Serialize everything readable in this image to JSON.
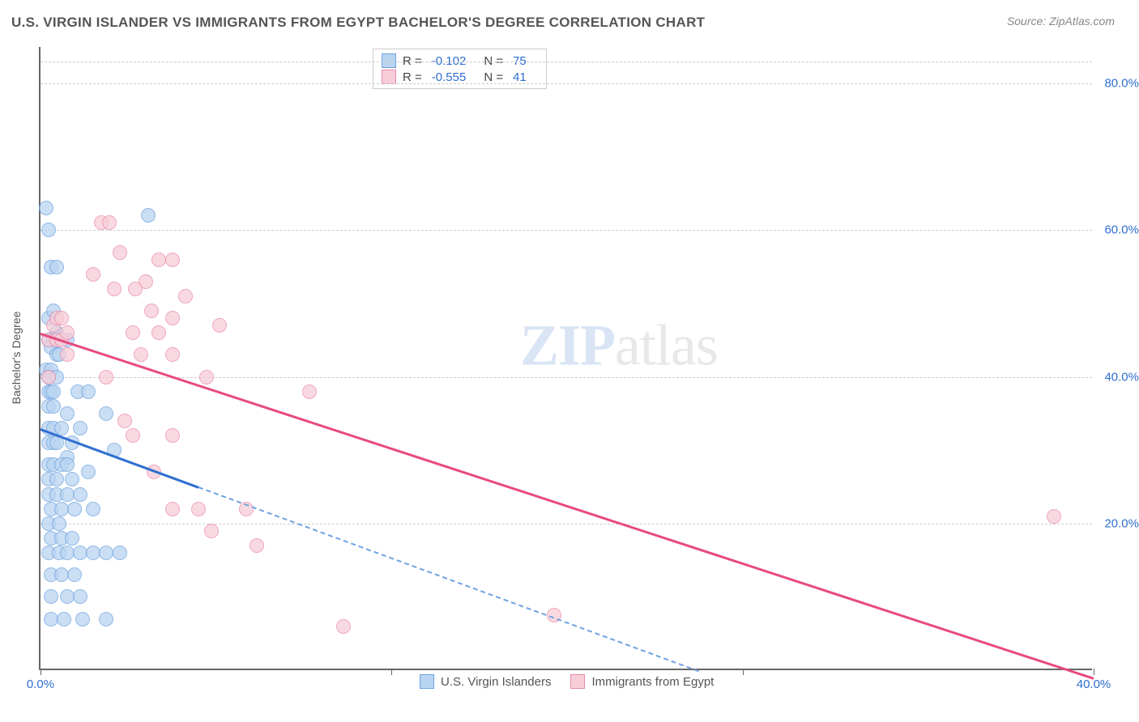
{
  "title": "U.S. VIRGIN ISLANDER VS IMMIGRANTS FROM EGYPT BACHELOR'S DEGREE CORRELATION CHART",
  "source": "Source: ZipAtlas.com",
  "watermark_a": "ZIP",
  "watermark_b": "atlas",
  "chart": {
    "type": "scatter",
    "ylabel": "Bachelor's Degree",
    "xlim": [
      0,
      40
    ],
    "ylim": [
      0,
      85
    ],
    "yticks": [
      20,
      40,
      60,
      80
    ],
    "ytick_labels": [
      "20.0%",
      "40.0%",
      "60.0%",
      "80.0%"
    ],
    "xticks": [
      0,
      13.33,
      26.67,
      40
    ],
    "xtick_labels": [
      "0.0%",
      "",
      "",
      "40.0%"
    ],
    "background_color": "#ffffff",
    "grid_color": "#cccccc",
    "axis_color": "#666666",
    "tick_label_color": "#2f6fd0",
    "series": [
      {
        "name": "U.S. Virgin Islanders",
        "marker_fill": "#b9d4f1",
        "marker_stroke": "#6ea3e0",
        "marker_radius": 9,
        "marker_opacity": 0.75,
        "line_color": "#2f6fd0",
        "line_dash_color": "#6ea3e0",
        "R": "-0.102",
        "N": "75",
        "trend": {
          "x1": 0,
          "y1": 33,
          "x2": 25,
          "y2": 0,
          "solid_until_x": 6
        },
        "points": [
          [
            0.2,
            63
          ],
          [
            0.3,
            60
          ],
          [
            4.1,
            62
          ],
          [
            0.4,
            55
          ],
          [
            0.6,
            55
          ],
          [
            0.3,
            48
          ],
          [
            0.5,
            49
          ],
          [
            0.3,
            45
          ],
          [
            0.5,
            45
          ],
          [
            0.6,
            46
          ],
          [
            0.4,
            44
          ],
          [
            0.6,
            43
          ],
          [
            0.7,
            43
          ],
          [
            1.0,
            45
          ],
          [
            0.2,
            41
          ],
          [
            0.4,
            41
          ],
          [
            0.3,
            40
          ],
          [
            0.6,
            40
          ],
          [
            0.3,
            38
          ],
          [
            0.4,
            38
          ],
          [
            0.5,
            38
          ],
          [
            0.3,
            36
          ],
          [
            0.5,
            36
          ],
          [
            1.4,
            38
          ],
          [
            1.8,
            38
          ],
          [
            1.0,
            35
          ],
          [
            0.3,
            33
          ],
          [
            0.5,
            33
          ],
          [
            0.8,
            33
          ],
          [
            0.3,
            31
          ],
          [
            0.5,
            31
          ],
          [
            0.6,
            31
          ],
          [
            1.2,
            31
          ],
          [
            1.5,
            33
          ],
          [
            2.5,
            35
          ],
          [
            1.0,
            29
          ],
          [
            0.3,
            28
          ],
          [
            0.5,
            28
          ],
          [
            0.8,
            28
          ],
          [
            1.0,
            28
          ],
          [
            2.8,
            30
          ],
          [
            0.3,
            26
          ],
          [
            0.6,
            26
          ],
          [
            1.2,
            26
          ],
          [
            1.8,
            27
          ],
          [
            0.3,
            24
          ],
          [
            0.6,
            24
          ],
          [
            1.0,
            24
          ],
          [
            1.5,
            24
          ],
          [
            0.4,
            22
          ],
          [
            0.8,
            22
          ],
          [
            1.3,
            22
          ],
          [
            2.0,
            22
          ],
          [
            0.3,
            20
          ],
          [
            0.7,
            20
          ],
          [
            0.4,
            18
          ],
          [
            0.8,
            18
          ],
          [
            1.2,
            18
          ],
          [
            0.3,
            16
          ],
          [
            0.7,
            16
          ],
          [
            1.0,
            16
          ],
          [
            1.5,
            16
          ],
          [
            2.0,
            16
          ],
          [
            2.5,
            16
          ],
          [
            3.0,
            16
          ],
          [
            0.4,
            13
          ],
          [
            0.8,
            13
          ],
          [
            1.3,
            13
          ],
          [
            0.4,
            10
          ],
          [
            1.0,
            10
          ],
          [
            1.5,
            10
          ],
          [
            0.4,
            7
          ],
          [
            0.9,
            7
          ],
          [
            1.6,
            7
          ],
          [
            2.5,
            7
          ]
        ]
      },
      {
        "name": "Immigrants from Egypt",
        "marker_fill": "#f7cdd8",
        "marker_stroke": "#e98aaa",
        "marker_radius": 9,
        "marker_opacity": 0.75,
        "line_color": "#e74a80",
        "R": "-0.555",
        "N": "41",
        "trend": {
          "x1": 0,
          "y1": 46,
          "x2": 40,
          "y2": -1
        },
        "points": [
          [
            2.3,
            61
          ],
          [
            2.6,
            61
          ],
          [
            3.0,
            57
          ],
          [
            5.0,
            56
          ],
          [
            4.5,
            56
          ],
          [
            2.0,
            54
          ],
          [
            4.0,
            53
          ],
          [
            2.8,
            52
          ],
          [
            3.6,
            52
          ],
          [
            5.5,
            51
          ],
          [
            0.5,
            47
          ],
          [
            0.6,
            48
          ],
          [
            0.8,
            48
          ],
          [
            4.2,
            49
          ],
          [
            5.0,
            48
          ],
          [
            0.3,
            45
          ],
          [
            0.6,
            45
          ],
          [
            0.8,
            45
          ],
          [
            1.0,
            46
          ],
          [
            3.5,
            46
          ],
          [
            4.5,
            46
          ],
          [
            6.8,
            47
          ],
          [
            1.0,
            43
          ],
          [
            3.8,
            43
          ],
          [
            5.0,
            43
          ],
          [
            0.3,
            40
          ],
          [
            2.5,
            40
          ],
          [
            6.3,
            40
          ],
          [
            10.2,
            38
          ],
          [
            3.2,
            34
          ],
          [
            3.5,
            32
          ],
          [
            5.0,
            32
          ],
          [
            4.3,
            27
          ],
          [
            5.0,
            22
          ],
          [
            6.0,
            22
          ],
          [
            7.8,
            22
          ],
          [
            6.5,
            19
          ],
          [
            8.2,
            17
          ],
          [
            38.5,
            21
          ],
          [
            11.5,
            6
          ],
          [
            19.5,
            7.5
          ]
        ]
      }
    ]
  },
  "legend_top_labels": {
    "R": "R =",
    "N": "N ="
  },
  "legend_bottom": [
    "U.S. Virgin Islanders",
    "Immigrants from Egypt"
  ]
}
